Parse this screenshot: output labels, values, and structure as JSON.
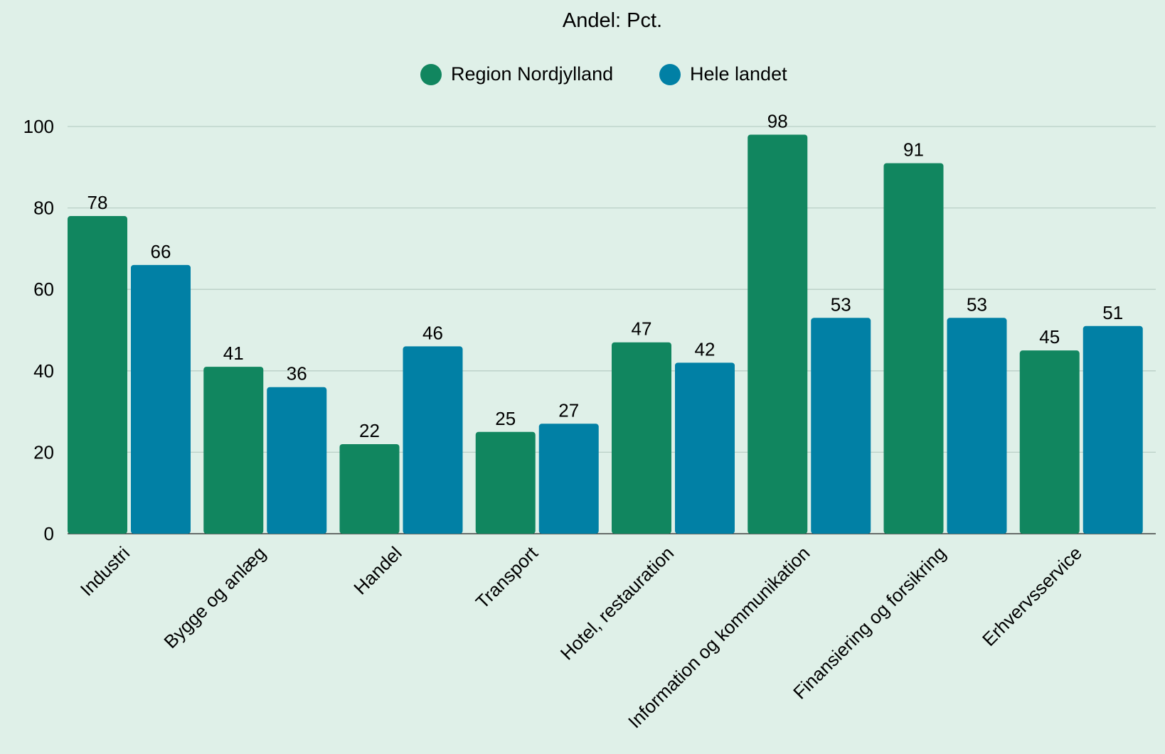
{
  "chart_data": {
    "type": "bar",
    "subtitle": "Andel: Pct.",
    "categories": [
      "Industri",
      "Bygge og anlæg",
      "Handel",
      "Transport",
      "Hotel, restauration",
      "Information og kommunikation",
      "Finansiering og forsikring",
      "Erhvervsservice"
    ],
    "series": [
      {
        "name": "Region Nordjylland",
        "color": "#11865f",
        "values": [
          78,
          41,
          22,
          25,
          47,
          98,
          91,
          45
        ]
      },
      {
        "name": "Hele landet",
        "color": "#0180a5",
        "values": [
          66,
          36,
          46,
          27,
          42,
          53,
          53,
          51
        ]
      }
    ],
    "yticks": [
      0,
      20,
      40,
      60,
      80,
      100
    ],
    "ylim": [
      0,
      100
    ],
    "grid": true,
    "legend_position": "top-center",
    "data_labels": true
  }
}
